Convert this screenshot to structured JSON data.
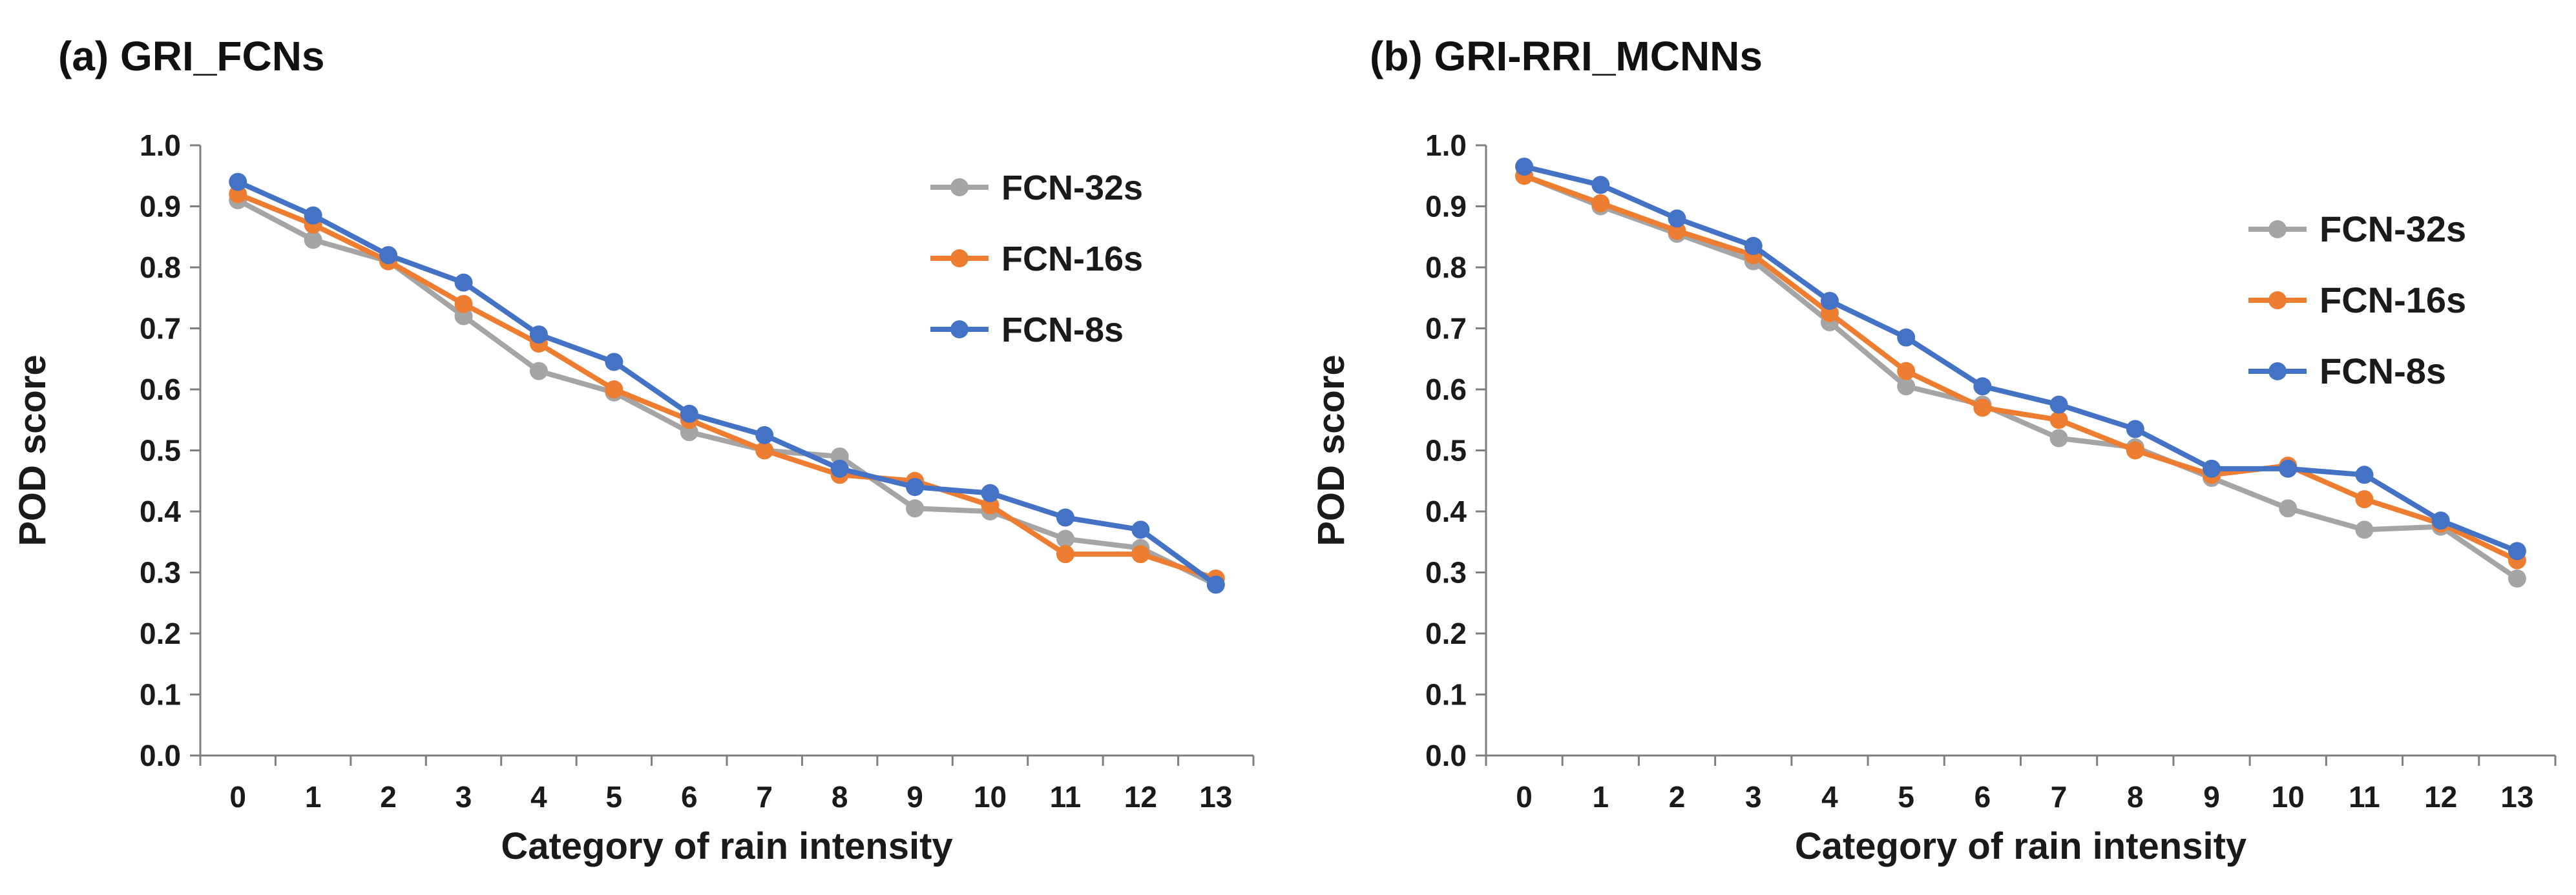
{
  "chart_data": [
    {
      "type": "line",
      "title": "(a) GRI_FCNs",
      "xlabel": "Category of rain intensity",
      "ylabel": "POD score",
      "ylim": [
        0,
        1.0
      ],
      "yticks": [
        "0.0",
        "0.1",
        "0.2",
        "0.3",
        "0.4",
        "0.5",
        "0.6",
        "0.7",
        "0.8",
        "0.9",
        "1.0"
      ],
      "categories": [
        "0",
        "1",
        "2",
        "3",
        "4",
        "5",
        "6",
        "7",
        "8",
        "9",
        "10",
        "11",
        "12",
        "13"
      ],
      "grid": false,
      "legend": "top-right",
      "series": [
        {
          "name": "FCN-32s",
          "color": "#a5a5a5",
          "values": [
            0.91,
            0.845,
            0.81,
            0.72,
            0.63,
            0.595,
            0.53,
            0.5,
            0.49,
            0.405,
            0.4,
            0.355,
            0.34,
            0.28
          ]
        },
        {
          "name": "FCN-16s",
          "color": "#ed7d31",
          "values": [
            0.92,
            0.87,
            0.81,
            0.74,
            0.675,
            0.6,
            0.55,
            0.5,
            0.46,
            0.45,
            0.41,
            0.33,
            0.33,
            0.29
          ]
        },
        {
          "name": "FCN-8s",
          "color": "#4472c4",
          "values": [
            0.94,
            0.885,
            0.82,
            0.775,
            0.69,
            0.645,
            0.56,
            0.525,
            0.47,
            0.44,
            0.43,
            0.39,
            0.37,
            0.28
          ]
        }
      ]
    },
    {
      "type": "line",
      "title": "(b) GRI-RRI_MCNNs",
      "xlabel": "Category of rain intensity",
      "ylabel": "POD score",
      "ylim": [
        0,
        1.0
      ],
      "yticks": [
        "0.0",
        "0.1",
        "0.2",
        "0.3",
        "0.4",
        "0.5",
        "0.6",
        "0.7",
        "0.8",
        "0.9",
        "1.0"
      ],
      "categories": [
        "0",
        "1",
        "2",
        "3",
        "4",
        "5",
        "6",
        "7",
        "8",
        "9",
        "10",
        "11",
        "12",
        "13"
      ],
      "grid": false,
      "legend": "top-right",
      "series": [
        {
          "name": "FCN-32s",
          "color": "#a5a5a5",
          "values": [
            0.95,
            0.9,
            0.855,
            0.81,
            0.71,
            0.605,
            0.575,
            0.52,
            0.505,
            0.455,
            0.405,
            0.37,
            0.375,
            0.29
          ]
        },
        {
          "name": "FCN-16s",
          "color": "#ed7d31",
          "values": [
            0.95,
            0.905,
            0.86,
            0.82,
            0.725,
            0.63,
            0.57,
            0.55,
            0.5,
            0.46,
            0.475,
            0.42,
            0.38,
            0.32
          ]
        },
        {
          "name": "FCN-8s",
          "color": "#4472c4",
          "values": [
            0.965,
            0.935,
            0.88,
            0.835,
            0.745,
            0.685,
            0.605,
            0.575,
            0.535,
            0.47,
            0.47,
            0.46,
            0.385,
            0.335
          ]
        }
      ]
    }
  ]
}
